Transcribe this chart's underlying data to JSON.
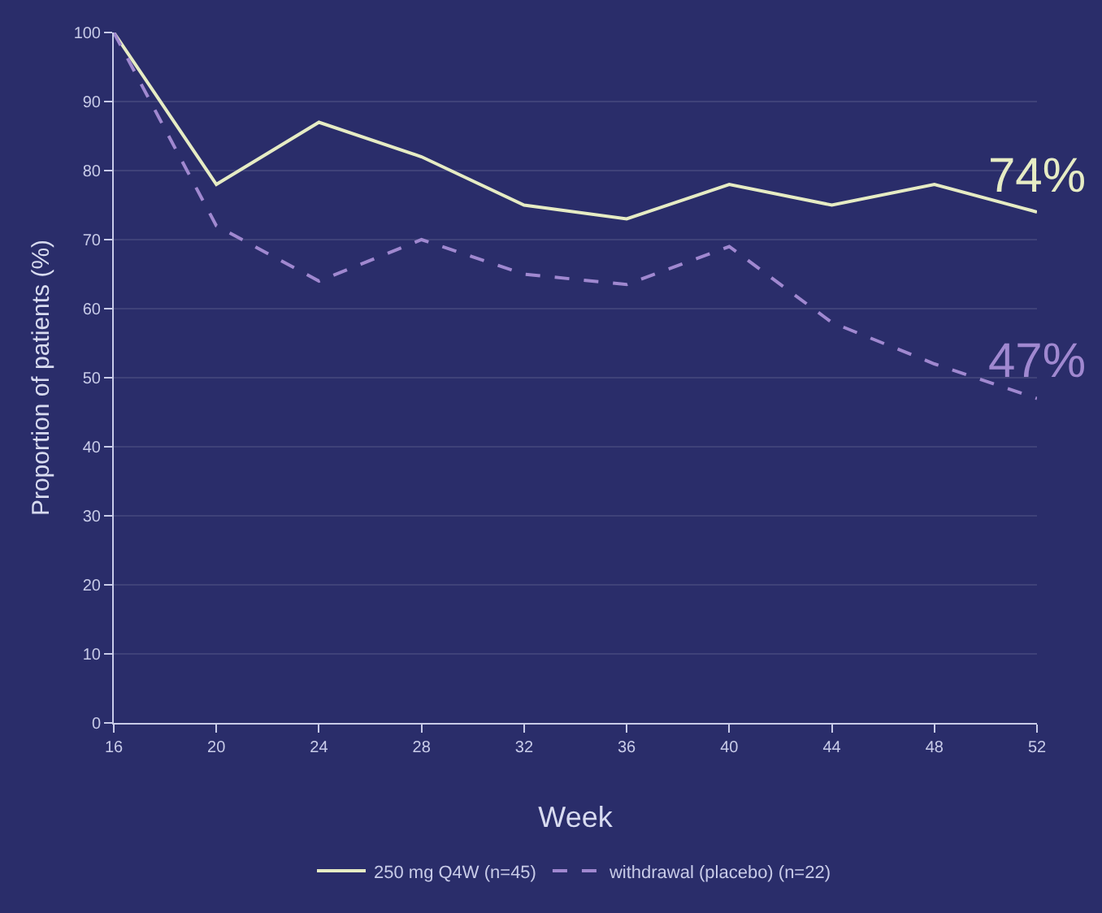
{
  "chart_data": {
    "type": "line",
    "xlabel": "Week",
    "ylabel": "Proportion of patients (%)",
    "x": [
      16,
      20,
      24,
      28,
      32,
      36,
      40,
      44,
      48,
      52
    ],
    "series": [
      {
        "name": "250 mg Q4W (n=45)",
        "color": "#e6ecc4",
        "line_style": "solid",
        "values": [
          100,
          78,
          87,
          82,
          75,
          73,
          78,
          75,
          78,
          74
        ]
      },
      {
        "name": "withdrawal (placebo) (n=22)",
        "color": "#a088d0",
        "line_style": "dashed",
        "values": [
          100,
          72,
          64,
          70,
          65,
          63.5,
          69,
          58,
          52,
          47
        ]
      }
    ],
    "xlim": [
      16,
      52
    ],
    "xticks": [
      16,
      20,
      24,
      28,
      32,
      36,
      40,
      44,
      48,
      52
    ],
    "ylim": [
      0,
      100
    ],
    "yticks": [
      0,
      10,
      20,
      30,
      40,
      50,
      60,
      70,
      80,
      90,
      100
    ],
    "grid": "y",
    "legend": "bottom",
    "annotations": [
      {
        "text": "74%",
        "x": 52,
        "y": 74
      },
      {
        "text": "47%",
        "x": 52,
        "y": 47
      }
    ]
  }
}
